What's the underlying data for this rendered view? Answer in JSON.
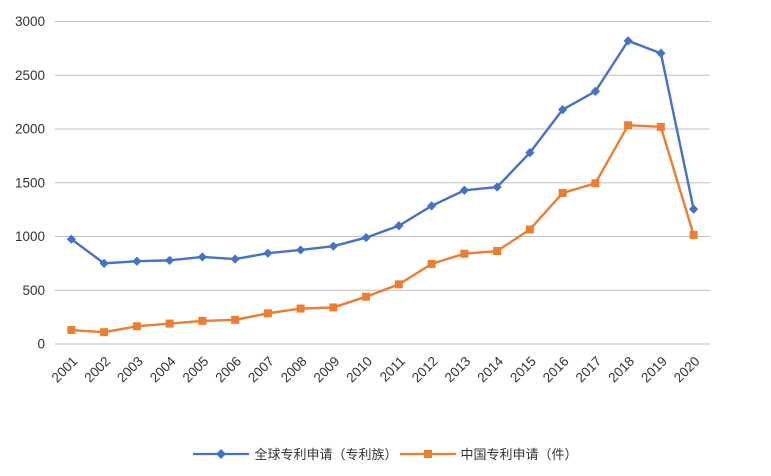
{
  "chart_data": {
    "type": "line",
    "title": "",
    "categories": [
      "2001",
      "2002",
      "2003",
      "2004",
      "2005",
      "2006",
      "2007",
      "2008",
      "2009",
      "2010",
      "2011",
      "2012",
      "2013",
      "2014",
      "2015",
      "2016",
      "2017",
      "2018",
      "2019",
      "2020"
    ],
    "series": [
      {
        "name": "全球专利申请（专利族）",
        "color": "#4472C4",
        "marker": "diamond",
        "values": [
          975,
          750,
          770,
          778,
          810,
          790,
          845,
          875,
          910,
          990,
          1100,
          1285,
          1430,
          1460,
          1780,
          2180,
          2350,
          2820,
          2705,
          1255
        ]
      },
      {
        "name": "中国专利申请（件）",
        "color": "#ED7D31",
        "marker": "square",
        "values": [
          130,
          110,
          165,
          190,
          215,
          225,
          285,
          330,
          340,
          440,
          555,
          745,
          840,
          865,
          1065,
          1405,
          1495,
          2035,
          2020,
          1015
        ]
      }
    ],
    "xlabel": "",
    "ylabel": "",
    "ylim": [
      0,
      3000
    ],
    "ytick_step": 500,
    "yticks": [
      "0",
      "500",
      "1000",
      "1500",
      "2000",
      "2500",
      "3000"
    ],
    "grid": true,
    "legend_position": "bottom",
    "colors": {
      "gridline": "#BFBFBF",
      "axis_text": "#333333",
      "background": "#FFFFFF"
    }
  }
}
